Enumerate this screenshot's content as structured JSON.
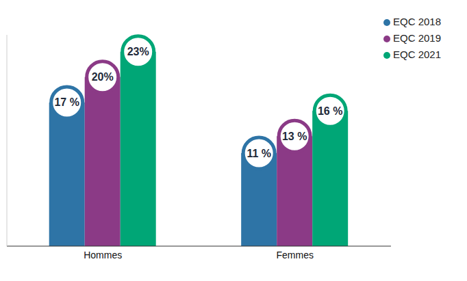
{
  "chart_data": {
    "type": "bar",
    "categories": [
      "Hommes",
      "Femmes"
    ],
    "series": [
      {
        "name": "EQC 2018",
        "color": "#2e74a6",
        "values": [
          17,
          11
        ],
        "value_labels": [
          "17 %",
          "11 %"
        ]
      },
      {
        "name": "EQC 2019",
        "color": "#8b3a86",
        "values": [
          20,
          13
        ],
        "value_labels": [
          "20%",
          "13 %"
        ]
      },
      {
        "name": "EQC 2021",
        "color": "#00a676",
        "values": [
          23,
          16
        ],
        "value_labels": [
          "23%",
          "16 %"
        ]
      }
    ],
    "ylim": [
      0,
      25
    ],
    "yticks": [],
    "legend": "upper right",
    "data_labels": true,
    "tick_labels": "x",
    "grid": false
  }
}
